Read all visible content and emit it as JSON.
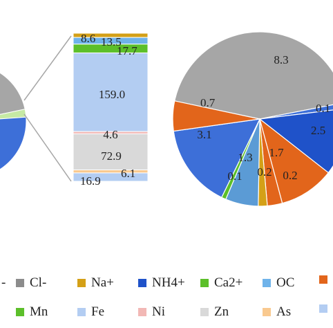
{
  "chart_data": [
    {
      "type": "pie",
      "name": "left-pie (partially visible)",
      "slices": [
        {
          "label": "grey",
          "color": "#a6a6a6",
          "value": null
        },
        {
          "label": "light-green",
          "color": "#c6e9a4",
          "value": null
        },
        {
          "label": "blue",
          "color": "#3d6fd8",
          "value": null
        }
      ]
    },
    {
      "type": "bar",
      "stacked": true,
      "name": "stacked-column",
      "segments": [
        {
          "species": "Na+",
          "value": 8.6,
          "color": "#d4a017"
        },
        {
          "species": "OC",
          "value": 13.5,
          "color": "#6fb3ea"
        },
        {
          "species": "Mn",
          "value": 17.7,
          "color": "#5cbf2a"
        },
        {
          "species": "Fe",
          "value": 159.0,
          "color": "#b3cdf2"
        },
        {
          "species": "Ni",
          "value": 4.6,
          "color": "#f2b8b5"
        },
        {
          "species": "Zn",
          "value": 72.9,
          "color": "#d9d9d9"
        },
        {
          "species": "As",
          "value": 6.1,
          "color": "#f9c98f"
        },
        {
          "species": "Fe",
          "value": 16.9,
          "color": "#b3cdf2"
        }
      ]
    },
    {
      "type": "pie",
      "name": "right-pie",
      "slices": [
        {
          "value": 8.3,
          "label": "8.3",
          "color": "#a6a6a6"
        },
        {
          "value": 0.1,
          "label": "0.1",
          "color": "#3d6fd8"
        },
        {
          "value": 2.5,
          "label": "2.5",
          "color": "#1f52c9"
        },
        {
          "value": 1.7,
          "label": "1.7",
          "color": "#e2651b"
        },
        {
          "value": 0.2,
          "label": "0.2",
          "color": "#e2651b"
        },
        {
          "value": 0.2,
          "label": "0.2",
          "color": "#d4a017"
        },
        {
          "value": 1.3,
          "label": "1.3",
          "color": "#5b9bd5"
        },
        {
          "value": 0.1,
          "label": "0.1",
          "color": "#5cbf2a"
        },
        {
          "value": 3.1,
          "label": "3.1",
          "color": "#3d6fd8"
        },
        {
          "value": 0.7,
          "label": "0.7",
          "color": "#e2651b"
        }
      ]
    }
  ],
  "legend": {
    "row1": [
      {
        "label": "Cl-",
        "color": "#8c8c8c"
      },
      {
        "label": "Na+",
        "color": "#d4a017"
      },
      {
        "label": "NH4+",
        "color": "#1f52c9"
      },
      {
        "label": "Ca2+",
        "color": "#5cbf2a"
      },
      {
        "label": "OC",
        "color": "#6fb3ea"
      },
      {
        "label": "",
        "color": "#e2651b"
      }
    ],
    "row2": [
      {
        "label": "Mn",
        "color": "#5cbf2a"
      },
      {
        "label": "Fe",
        "color": "#b3cdf2"
      },
      {
        "label": "Ni",
        "color": "#f2b8b5"
      },
      {
        "label": "Zn",
        "color": "#d9d9d9"
      },
      {
        "label": "As",
        "color": "#f9c98f"
      },
      {
        "label": "",
        "color": "#b3cdf2"
      }
    ],
    "row1_leading": "-"
  }
}
